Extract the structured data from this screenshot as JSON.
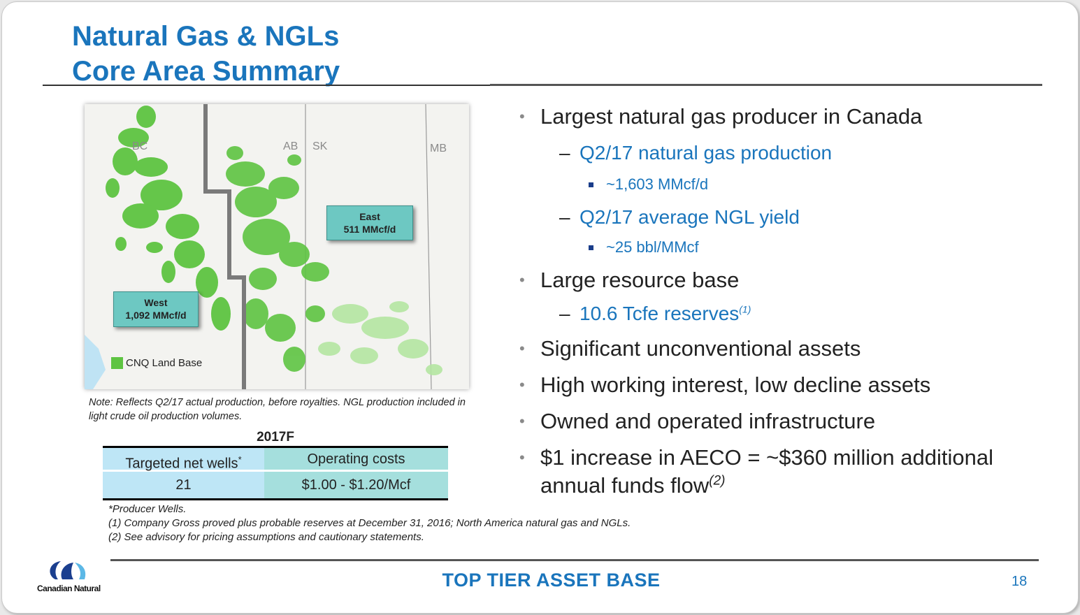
{
  "title": {
    "line1": "Natural Gas & NGLs",
    "line2": "Core Area Summary"
  },
  "map": {
    "provinces": [
      "BC",
      "AB",
      "SK",
      "MB"
    ],
    "callouts": [
      {
        "region": "East",
        "value": "511 MMcf/d"
      },
      {
        "region": "West",
        "value": "1,092 MMcf/d"
      }
    ],
    "legend_label": "CNQ Land Base",
    "land_color": "#5ec442"
  },
  "note": "Note: Reflects Q2/17 actual production, before royalties. NGL production included in light crude oil production volumes.",
  "table": {
    "year": "2017F",
    "headers": [
      "Targeted net wells",
      "Operating costs"
    ],
    "header_marker": "*",
    "row": [
      "21",
      "$1.00 - $1.20/Mcf"
    ]
  },
  "footnotes": [
    "*Producer Wells.",
    "(1) Company Gross proved plus probable reserves at December 31, 2016; North America natural gas and NGLs.",
    "(2) See advisory for pricing assumptions and cautionary statements."
  ],
  "bullets": {
    "b1": "Largest natural gas producer in Canada",
    "b1_s1": "Q2/17 natural gas production",
    "b1_s1_v": "~1,603 MMcf/d",
    "b1_s2": "Q2/17 average NGL yield",
    "b1_s2_v": "~25 bbl/MMcf",
    "b2": "Large resource base",
    "b2_s1": "10.6 Tcfe reserves",
    "b2_s1_ref": "(1)",
    "b3": "Significant unconventional assets",
    "b4": "High working interest, low decline assets",
    "b5": "Owned and operated infrastructure",
    "b6_line1": "$1 increase in AECO = ~$360 million additional",
    "b6_line2": "annual funds flow",
    "b6_ref": "(2)"
  },
  "footer": {
    "logo_text": "Canadian Natural",
    "tagline": "TOP TIER ASSET BASE",
    "page_number": "18"
  },
  "colors": {
    "title_blue": "#1a75bc",
    "table_header_left": "#bee6f6",
    "table_header_right": "#a5dfdd",
    "callout_teal": "#6dc8c2"
  }
}
